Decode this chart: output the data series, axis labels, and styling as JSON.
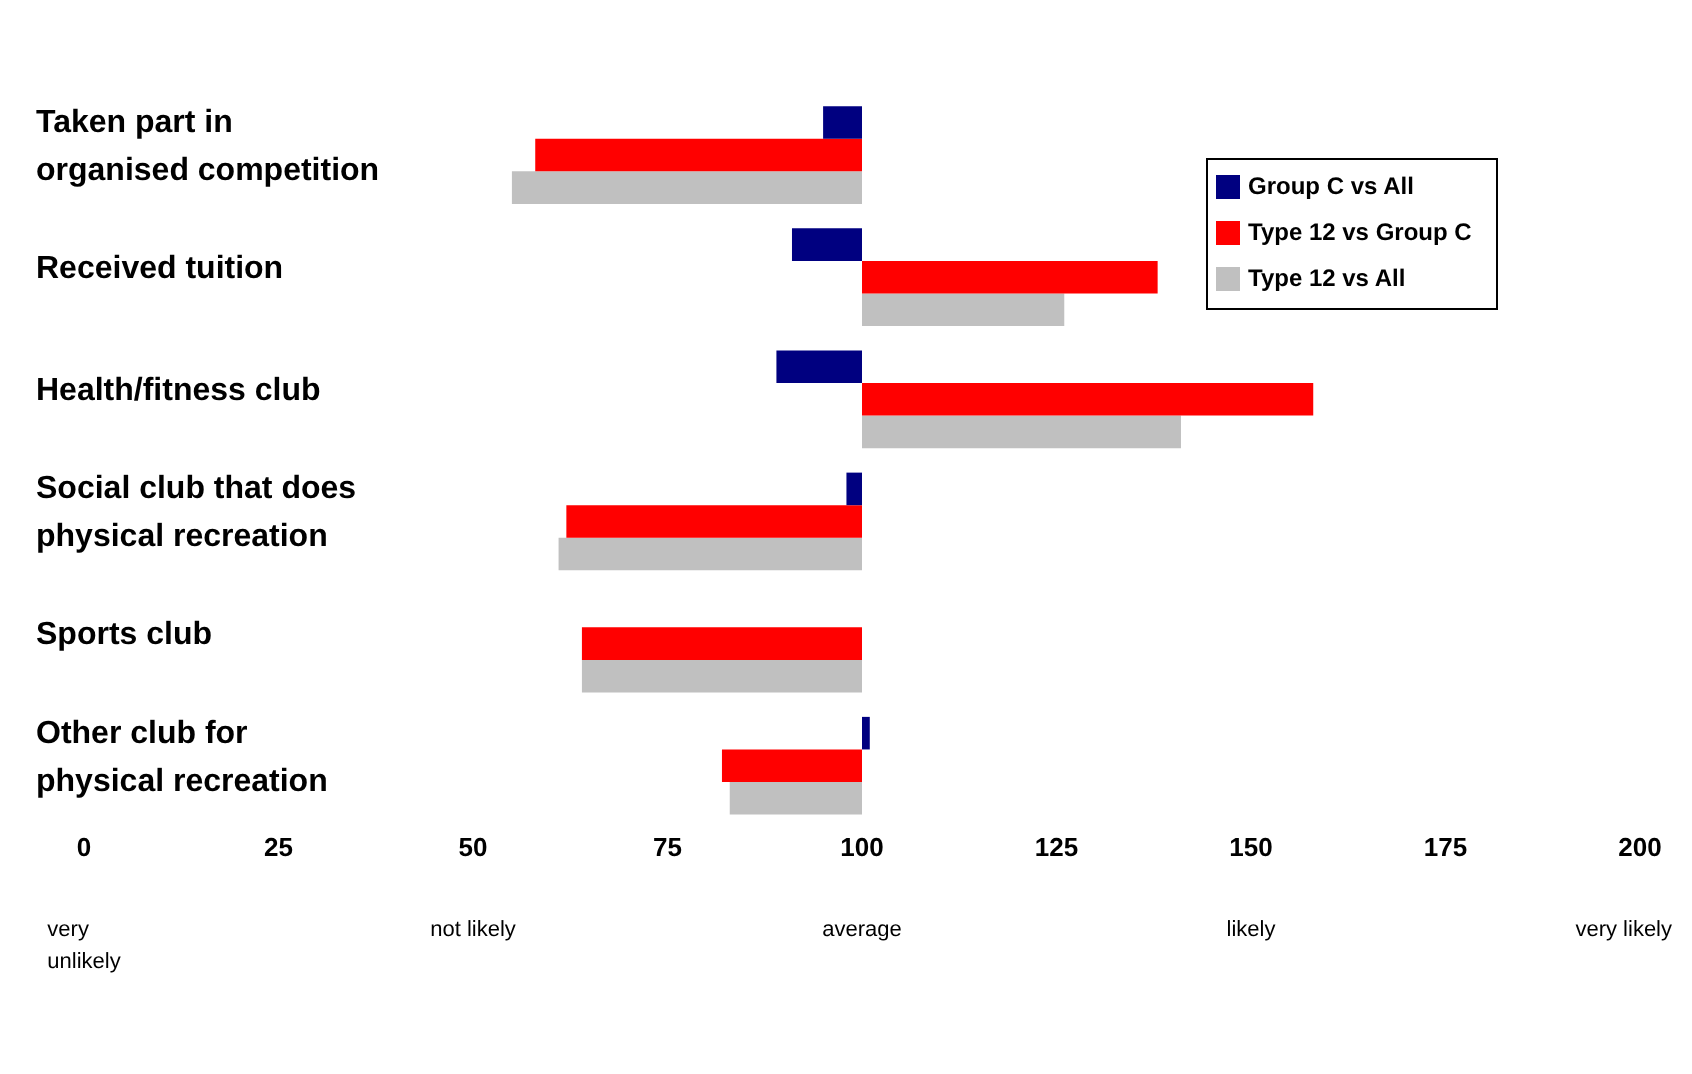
{
  "chart_data": {
    "type": "bar",
    "orientation": "horizontal",
    "categories": [
      "Taken part in organised competition",
      "Received tuition",
      "Health/fitness club",
      "Social club that does physical recreation",
      "Sports club",
      "Other club for physical recreation"
    ],
    "series": [
      {
        "name": "Group C vs All",
        "color": "#000080",
        "base": [
          100,
          100,
          100,
          100,
          null,
          100
        ],
        "values": [
          -5,
          -9,
          -11,
          -2,
          null,
          1
        ]
      },
      {
        "name": "Type 12 vs Group C",
        "color": "#ff0000",
        "base": [
          100,
          100,
          100,
          100,
          100,
          100
        ],
        "values": [
          -42,
          38,
          58,
          -38,
          -36,
          -18
        ]
      },
      {
        "name": "Type 12 vs All",
        "color": "#c0c0c0",
        "base": [
          100,
          100,
          100,
          100,
          100,
          100
        ],
        "values": [
          -45,
          26,
          41,
          -39,
          -36,
          -17
        ]
      }
    ],
    "xlim": [
      0,
      200
    ],
    "xticks": [
      0,
      25,
      50,
      75,
      100,
      125,
      150,
      175,
      200
    ],
    "annotations": [
      "very unlikely",
      "not likely",
      "average",
      "likely",
      "very likely"
    ],
    "grid": false,
    "legend": "top right"
  }
}
